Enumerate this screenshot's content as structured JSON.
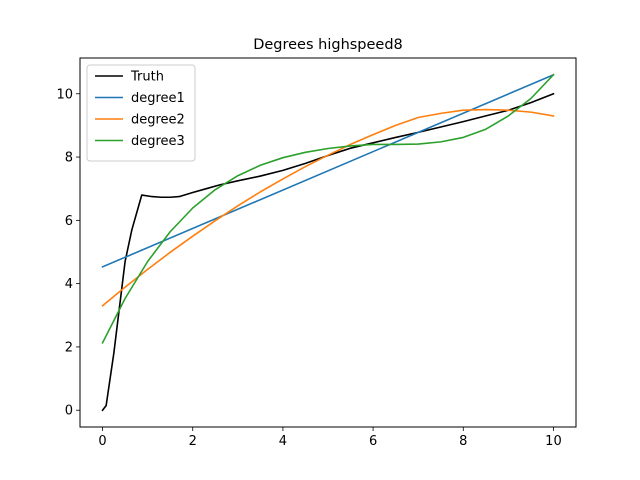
{
  "chart_data": {
    "type": "line",
    "title": "Degrees highspeed8",
    "xlabel": "",
    "ylabel": "",
    "xlim": [
      -0.5,
      10.5
    ],
    "ylim": [
      -0.53,
      11.13
    ],
    "x_ticks": [
      0,
      2,
      4,
      6,
      8,
      10
    ],
    "y_ticks": [
      0,
      2,
      4,
      6,
      8,
      10
    ],
    "grid": false,
    "legend_position": "top-left",
    "series": [
      {
        "name": "Truth",
        "color": "#000000",
        "x": [
          0,
          0.08,
          0.25,
          0.5,
          0.65,
          0.87,
          1.1,
          1.3,
          1.5,
          1.7,
          2.0,
          2.3,
          2.6,
          3.0,
          3.5,
          4.0,
          4.5,
          5.0,
          5.5,
          6.0,
          6.5,
          7.0,
          7.5,
          8.0,
          8.5,
          9.0,
          9.5,
          10.0
        ],
        "values": [
          0.0,
          0.15,
          1.8,
          4.7,
          5.7,
          6.8,
          6.75,
          6.73,
          6.73,
          6.75,
          6.88,
          7.0,
          7.12,
          7.25,
          7.4,
          7.58,
          7.8,
          8.05,
          8.28,
          8.45,
          8.62,
          8.78,
          8.95,
          9.12,
          9.3,
          9.48,
          9.72,
          10.0
        ]
      },
      {
        "name": "degree1",
        "color": "#1f77b4",
        "x": [
          0,
          10
        ],
        "values": [
          4.53,
          10.6
        ]
      },
      {
        "name": "degree2",
        "color": "#ff7f0e",
        "x": [
          0,
          0.5,
          1,
          1.5,
          2,
          2.5,
          3,
          3.5,
          4,
          4.5,
          5,
          5.5,
          6,
          6.5,
          7,
          7.5,
          8,
          8.5,
          9,
          9.5,
          10
        ],
        "values": [
          3.3,
          3.89,
          4.45,
          4.99,
          5.5,
          5.99,
          6.46,
          6.9,
          7.31,
          7.7,
          8.06,
          8.4,
          8.71,
          9.0,
          9.25,
          9.38,
          9.48,
          9.5,
          9.48,
          9.42,
          9.3
        ]
      },
      {
        "name": "degree3",
        "color": "#2ca02c",
        "x": [
          0,
          0.5,
          1,
          1.5,
          2,
          2.5,
          3,
          3.5,
          4,
          4.5,
          5,
          5.5,
          6,
          6.5,
          7,
          7.5,
          8,
          8.5,
          9,
          9.5,
          10
        ],
        "values": [
          2.13,
          3.53,
          4.7,
          5.64,
          6.39,
          6.97,
          7.41,
          7.74,
          7.98,
          8.15,
          8.27,
          8.35,
          8.4,
          8.4,
          8.41,
          8.48,
          8.62,
          8.88,
          9.3,
          9.85,
          10.6
        ]
      }
    ]
  }
}
